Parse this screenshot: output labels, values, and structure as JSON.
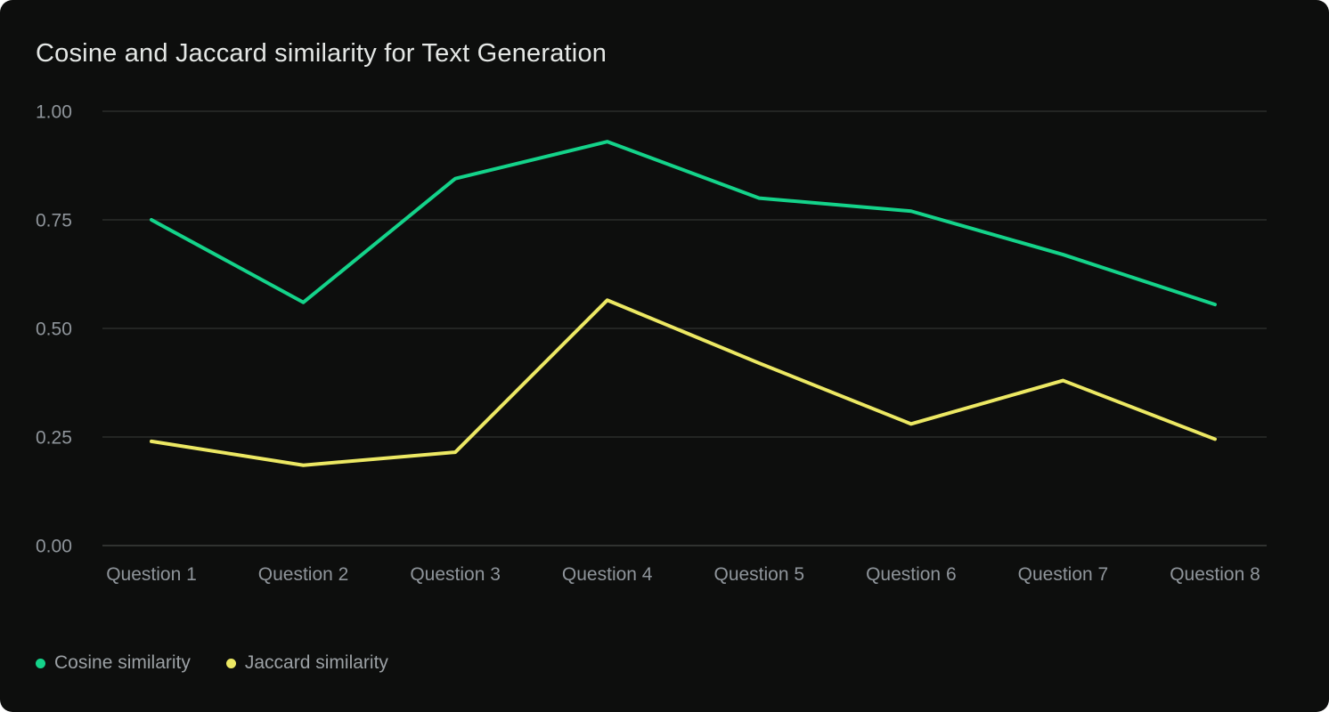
{
  "title": "Cosine and Jaccard similarity for Text Generation",
  "colors": {
    "background": "#0d0e0d",
    "title_text": "#e4e7e5",
    "grid_line": "#2b2d2b",
    "axis_line": "#3d3f3d",
    "tick_label": "#8f959b",
    "legend_text": "#9ba0a4",
    "cosine": "#14d38a",
    "jaccard": "#ece863"
  },
  "legend": {
    "items": [
      {
        "label": "Cosine similarity",
        "color": "#14d38a"
      },
      {
        "label": "Jaccard similarity",
        "color": "#ece863"
      }
    ]
  },
  "chart_data": {
    "type": "line",
    "title": "Cosine and Jaccard similarity for Text Generation",
    "xlabel": "",
    "ylabel": "",
    "categories": [
      "Question 1",
      "Question 2",
      "Question 3",
      "Question 4",
      "Question 5",
      "Question 6",
      "Question 7",
      "Question 8"
    ],
    "series": [
      {
        "name": "Cosine similarity",
        "color": "#14d38a",
        "values": [
          0.75,
          0.56,
          0.845,
          0.93,
          0.8,
          0.77,
          0.67,
          0.555
        ]
      },
      {
        "name": "Jaccard similarity",
        "color": "#ece863",
        "values": [
          0.24,
          0.185,
          0.215,
          0.565,
          0.42,
          0.28,
          0.38,
          0.245
        ]
      }
    ],
    "ylim": [
      0,
      1
    ],
    "yticks": [
      {
        "value": 1.0,
        "label": "1.00"
      },
      {
        "value": 0.75,
        "label": "0.75"
      },
      {
        "value": 0.5,
        "label": "0.50"
      },
      {
        "value": 0.25,
        "label": "0.25"
      },
      {
        "value": 0.0,
        "label": "0.00"
      }
    ],
    "grid": true,
    "legend_position": "bottom-left"
  }
}
